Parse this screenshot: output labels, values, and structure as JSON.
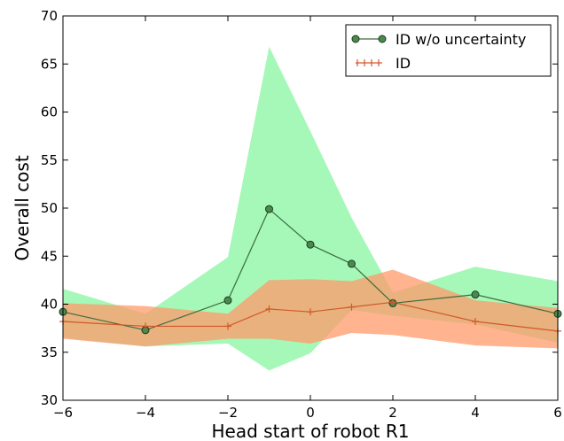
{
  "chart_data": {
    "type": "line",
    "title": "",
    "xlabel": "Head start of robot R1",
    "ylabel": "Overall cost",
    "xlim": [
      -6,
      6
    ],
    "ylim": [
      30,
      70
    ],
    "xticks": [
      -6,
      -4,
      -2,
      0,
      2,
      4,
      6
    ],
    "yticks": [
      30,
      35,
      40,
      45,
      50,
      55,
      60,
      65,
      70
    ],
    "xtick_labels": [
      "−6",
      "−4",
      "−2",
      "0",
      "2",
      "4",
      "6"
    ],
    "ytick_labels": [
      "30",
      "35",
      "40",
      "45",
      "50",
      "55",
      "60",
      "65",
      "70"
    ],
    "grid": false,
    "legend_position": "top-right",
    "series": [
      {
        "name": "ID w/o uncertainty",
        "color": "#3d6b3f",
        "marker": "circle",
        "x": [
          -6,
          -4,
          -2,
          -1,
          0,
          1,
          2,
          4,
          6
        ],
        "y": [
          39.2,
          37.3,
          40.4,
          49.9,
          46.2,
          44.2,
          40.1,
          41.0,
          39.0
        ]
      },
      {
        "name": "ID",
        "color": "#d2582a",
        "marker": "plus",
        "x": [
          -6,
          -4,
          -2,
          -1,
          0,
          1,
          2,
          4,
          6
        ],
        "y": [
          38.2,
          37.7,
          37.7,
          39.5,
          39.2,
          39.7,
          40.2,
          38.2,
          37.2
        ]
      }
    ],
    "bands": [
      {
        "series": "ID w/o uncertainty",
        "color": "#7ff59a",
        "x": [
          -6,
          -4,
          -2,
          -1,
          0,
          1,
          2,
          4,
          6
        ],
        "upper": [
          41.6,
          39.0,
          44.9,
          66.8,
          58.0,
          49.0,
          41.2,
          43.9,
          42.4
        ],
        "lower": [
          36.5,
          35.6,
          35.9,
          33.1,
          34.9,
          39.4,
          38.8,
          37.9,
          36.0
        ]
      },
      {
        "series": "ID",
        "color": "#ff9a6a",
        "x": [
          -6,
          -4,
          -2,
          -1,
          0,
          1,
          2,
          4,
          6
        ],
        "upper": [
          40.1,
          39.8,
          39.0,
          42.5,
          42.6,
          42.4,
          43.6,
          40.4,
          39.6
        ],
        "lower": [
          36.4,
          35.6,
          36.4,
          36.4,
          35.9,
          37.0,
          36.8,
          35.7,
          35.4
        ]
      }
    ]
  }
}
